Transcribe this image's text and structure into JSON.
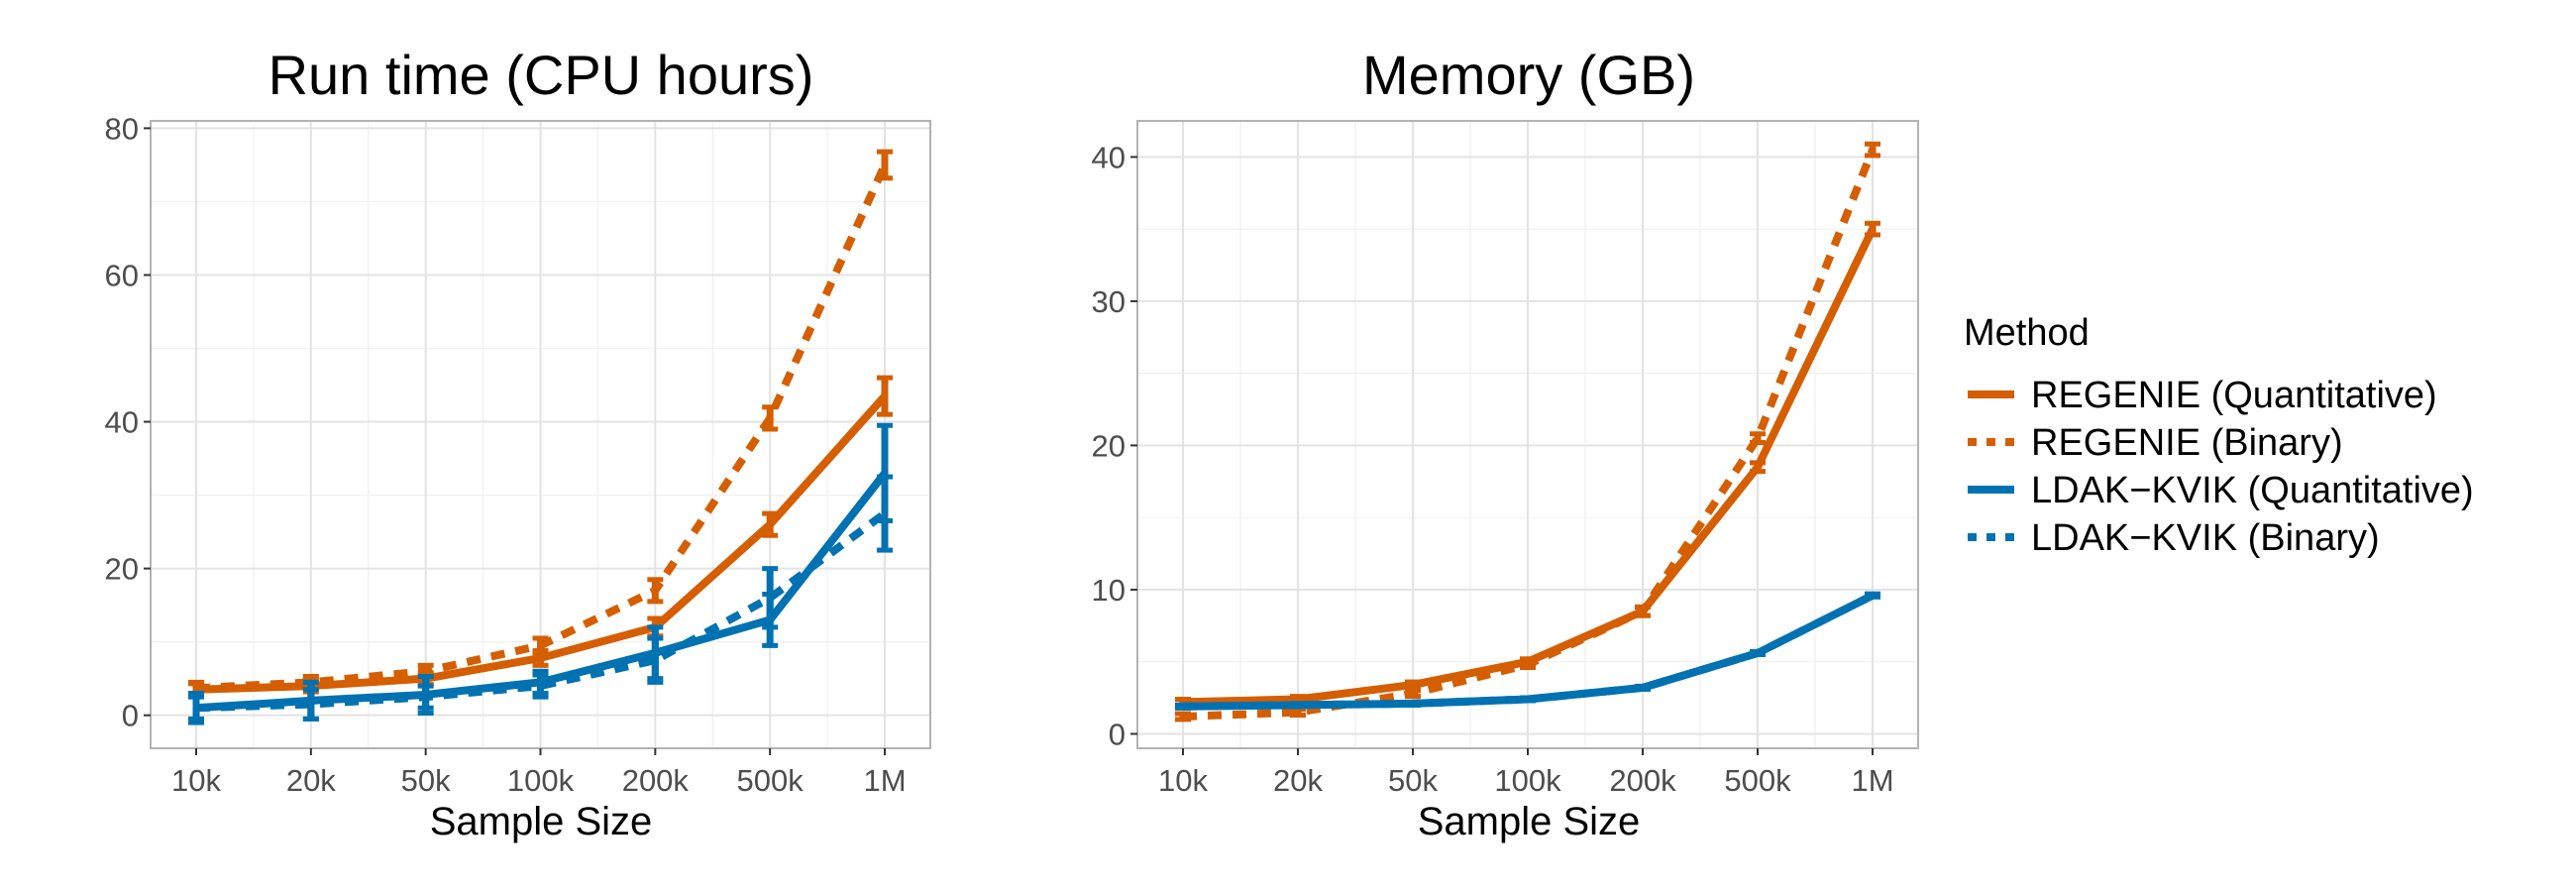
{
  "colors": {
    "regenie": "#D55E00",
    "ldak": "#0072B2"
  },
  "legend": {
    "title": "Method",
    "items": [
      {
        "label": "REGENIE (Quantitative)",
        "color": "#D55E00",
        "dashed": false
      },
      {
        "label": "REGENIE (Binary)",
        "color": "#D55E00",
        "dashed": true
      },
      {
        "label": "LDAK−KVIK (Quantitative)",
        "color": "#0072B2",
        "dashed": false
      },
      {
        "label": "LDAK−KVIK (Binary)",
        "color": "#0072B2",
        "dashed": true
      }
    ]
  },
  "chart_data": [
    {
      "type": "line",
      "title": "Run time (CPU hours)",
      "xlabel": "Sample Size",
      "ylabel": "",
      "categories": [
        "10k",
        "20k",
        "50k",
        "100k",
        "200k",
        "500k",
        "1M"
      ],
      "ylim": [
        -4.5,
        81
      ],
      "yticks": [
        0,
        20,
        40,
        60,
        80
      ],
      "grid": true,
      "series": [
        {
          "name": "REGENIE (Quantitative)",
          "color": "#D55E00",
          "dashed": false,
          "values": [
            3.5,
            4.0,
            5.0,
            7.8,
            12.0,
            26.0,
            43.5
          ],
          "err": [
            0.8,
            0.8,
            0.8,
            1.0,
            1.2,
            1.5,
            2.5
          ]
        },
        {
          "name": "REGENIE (Binary)",
          "color": "#D55E00",
          "dashed": true,
          "values": [
            3.7,
            4.5,
            6.0,
            9.5,
            17.0,
            40.5,
            75.0
          ],
          "err": [
            0.8,
            0.8,
            0.8,
            1.0,
            1.5,
            1.5,
            1.8
          ]
        },
        {
          "name": "LDAK−KVIK (Quantitative)",
          "color": "#0072B2",
          "dashed": false,
          "values": [
            1.0,
            2.0,
            2.8,
            4.5,
            8.5,
            13.0,
            33.0
          ],
          "err": [
            2.0,
            2.5,
            2.5,
            1.5,
            3.5,
            3.5,
            6.5
          ]
        },
        {
          "name": "LDAK−KVIK (Binary)",
          "color": "#0072B2",
          "dashed": true,
          "values": [
            1.0,
            1.5,
            2.5,
            4.0,
            7.5,
            16.0,
            27.5
          ],
          "err": [
            1.5,
            2.0,
            1.5,
            1.5,
            3.0,
            4.0,
            5.0
          ]
        }
      ]
    },
    {
      "type": "line",
      "title": "Memory (GB)",
      "xlabel": "Sample Size",
      "ylabel": "",
      "categories": [
        "10k",
        "20k",
        "50k",
        "100k",
        "200k",
        "500k",
        "1M"
      ],
      "ylim": [
        -1,
        42.5
      ],
      "yticks": [
        0,
        10,
        20,
        30,
        40
      ],
      "grid": true,
      "series": [
        {
          "name": "REGENIE (Quantitative)",
          "color": "#D55E00",
          "dashed": false,
          "values": [
            2.2,
            2.4,
            3.4,
            5.0,
            8.5,
            18.5,
            35.0
          ],
          "err": [
            0.2,
            0.2,
            0.2,
            0.2,
            0.3,
            0.3,
            0.4
          ]
        },
        {
          "name": "REGENIE (Binary)",
          "color": "#D55E00",
          "dashed": true,
          "values": [
            1.2,
            1.5,
            2.8,
            4.8,
            8.5,
            20.5,
            40.5
          ],
          "err": [
            0.2,
            0.2,
            0.2,
            0.2,
            0.3,
            0.3,
            0.4
          ]
        },
        {
          "name": "LDAK−KVIK (Quantitative)",
          "color": "#0072B2",
          "dashed": false,
          "values": [
            1.9,
            2.0,
            2.1,
            2.4,
            3.2,
            5.6,
            9.6
          ],
          "err": [
            0.1,
            0.1,
            0.1,
            0.1,
            0.1,
            0.1,
            0.1
          ]
        },
        {
          "name": "LDAK−KVIK (Binary)",
          "color": "#0072B2",
          "dashed": true,
          "values": [
            1.9,
            2.0,
            2.1,
            2.4,
            3.2,
            5.6,
            9.6
          ],
          "err": [
            0.1,
            0.1,
            0.1,
            0.1,
            0.1,
            0.1,
            0.1
          ]
        }
      ]
    }
  ]
}
